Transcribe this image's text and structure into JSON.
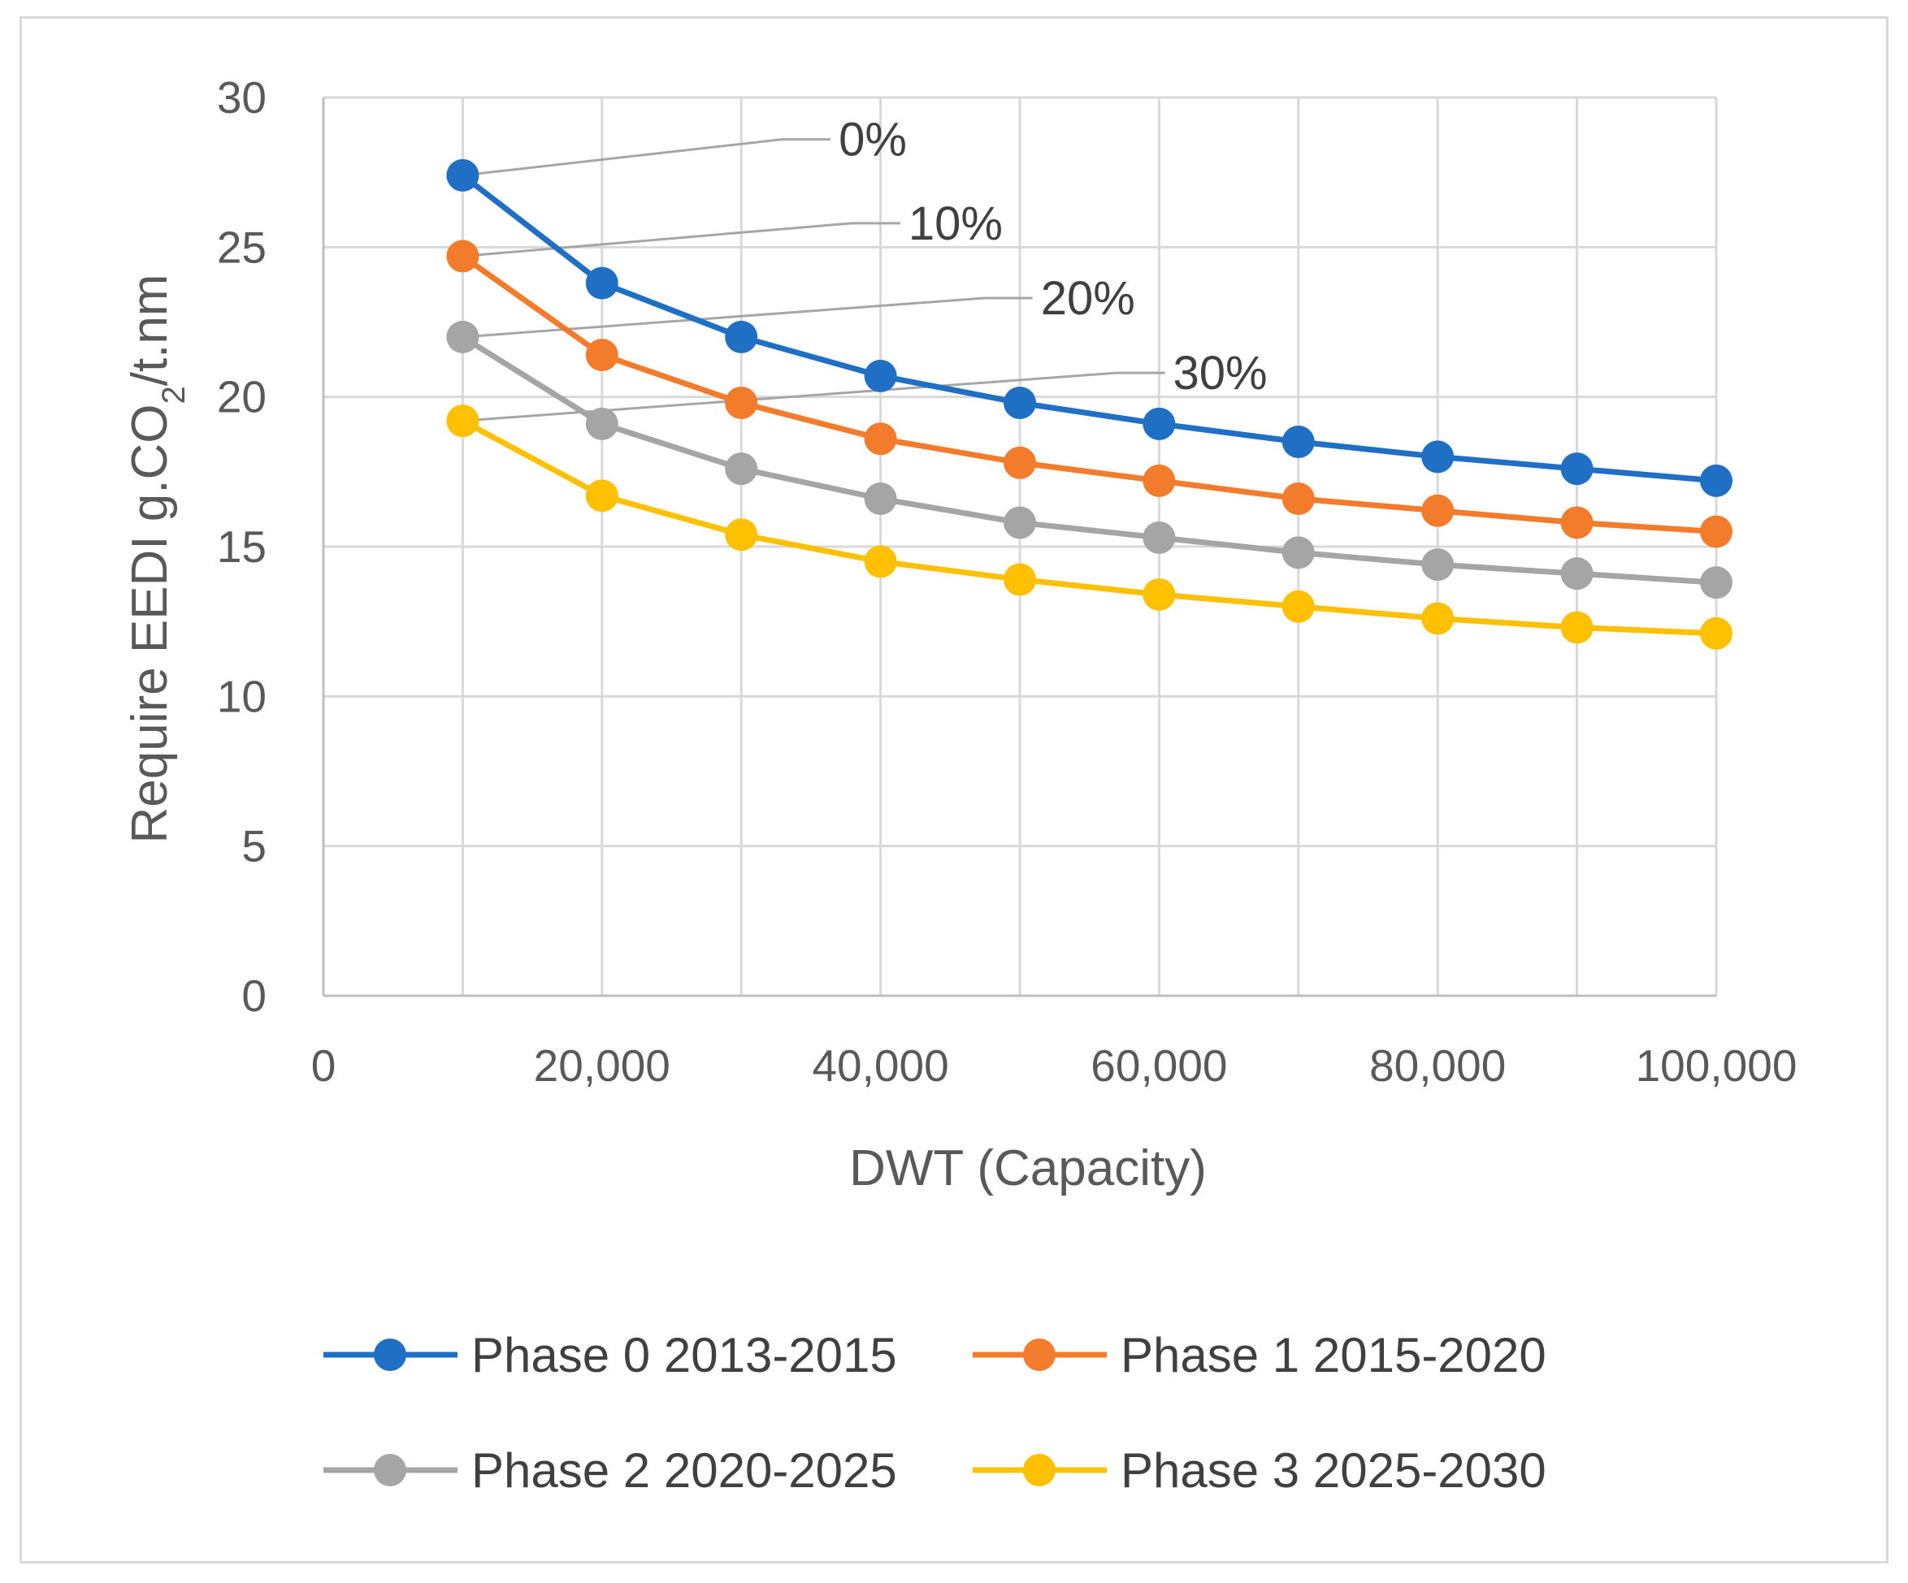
{
  "chart_data": {
    "type": "line",
    "xlabel": "DWT (Capacity)",
    "ylabel": {
      "main": "Require EEDI  g.CO",
      "sub": "2",
      "tail": "/t.nm"
    },
    "xlim": [
      0,
      100000
    ],
    "ylim": [
      0,
      30
    ],
    "x_ticks": [
      {
        "value": 0,
        "label": "0"
      },
      {
        "value": 20000,
        "label": "20,000"
      },
      {
        "value": 40000,
        "label": "40,000"
      },
      {
        "value": 60000,
        "label": "60,000"
      },
      {
        "value": 80000,
        "label": "80,000"
      },
      {
        "value": 100000,
        "label": "100,000"
      }
    ],
    "y_ticks": [
      {
        "value": 0,
        "label": "0"
      },
      {
        "value": 5,
        "label": "5"
      },
      {
        "value": 10,
        "label": "10"
      },
      {
        "value": 15,
        "label": "15"
      },
      {
        "value": 20,
        "label": "20"
      },
      {
        "value": 25,
        "label": "25"
      },
      {
        "value": 30,
        "label": "30"
      }
    ],
    "grid": true,
    "legend_position": "bottom",
    "x": [
      10000,
      20000,
      30000,
      40000,
      50000,
      60000,
      70000,
      80000,
      90000,
      100000
    ],
    "series": [
      {
        "name": "Phase 0  2013-2015",
        "color": "#1f6fc5",
        "values": [
          27.4,
          23.8,
          22.0,
          20.7,
          19.8,
          19.1,
          18.5,
          18.0,
          17.6,
          17.2
        ]
      },
      {
        "name": "Phase 1  2015-2020",
        "color": "#f37b2c",
        "values": [
          24.7,
          21.4,
          19.8,
          18.6,
          17.8,
          17.2,
          16.6,
          16.2,
          15.8,
          15.5
        ]
      },
      {
        "name": "Phase 2  2020-2025",
        "color": "#a5a5a5",
        "values": [
          22.0,
          19.1,
          17.6,
          16.6,
          15.8,
          15.3,
          14.8,
          14.4,
          14.1,
          13.8
        ]
      },
      {
        "name": "Phase 3  2025-2030",
        "color": "#ffc000",
        "values": [
          19.2,
          16.7,
          15.4,
          14.5,
          13.9,
          13.4,
          13.0,
          12.6,
          12.3,
          12.1
        ]
      }
    ],
    "annotations": [
      {
        "text": "0%",
        "series_index": 0,
        "point_x": 10000,
        "label_x": 37000,
        "label_y": 28.6
      },
      {
        "text": "10%",
        "series_index": 1,
        "point_x": 10000,
        "label_x": 42000,
        "label_y": 25.8
      },
      {
        "text": "20%",
        "series_index": 2,
        "point_x": 10000,
        "label_x": 51500,
        "label_y": 23.3
      },
      {
        "text": "30%",
        "series_index": 3,
        "point_x": 10000,
        "label_x": 61000,
        "label_y": 20.8
      }
    ]
  }
}
